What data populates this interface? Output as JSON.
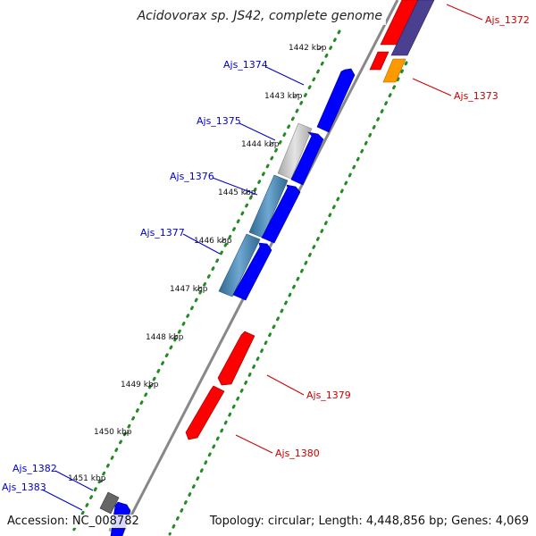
{
  "title": "Acidovorax sp. JS42, complete genome",
  "footer": {
    "accession": "Accession: NC_008782",
    "topology": "Topology: circular; Length: 4,448,856 bp; Genes: 4,069"
  },
  "colors": {
    "forward_label": "#0000cc",
    "reverse_label": "#cc0000",
    "backbone": "#888888",
    "dots": "#228b22"
  },
  "scale": {
    "unit": "kbp",
    "ticks": [
      "1442 kbp",
      "1443 kbp",
      "1444 kbp",
      "1445 kbp",
      "1446 kbp",
      "1447 kbp",
      "1448 kbp",
      "1449 kbp",
      "1450 kbp",
      "1451 kbp"
    ]
  },
  "genes": [
    {
      "name": "Ajs_1372",
      "strand": "-",
      "color": "#ff0000"
    },
    {
      "name": "Ajs_1373",
      "strand": "-",
      "color": "#ff8c00"
    },
    {
      "name": "Ajs_1374",
      "strand": "+",
      "color": "#0000ff"
    },
    {
      "name": "Ajs_1375",
      "strand": "+",
      "color": "#0000ff"
    },
    {
      "name": "Ajs_1376",
      "strand": "+",
      "color": "#0000ff"
    },
    {
      "name": "Ajs_1377",
      "strand": "+",
      "color": "#0000ff"
    },
    {
      "name": "Ajs_1379",
      "strand": "-",
      "color": "#ff0000"
    },
    {
      "name": "Ajs_1380",
      "strand": "-",
      "color": "#ff0000"
    },
    {
      "name": "Ajs_1382",
      "strand": "+",
      "color": "#666666"
    },
    {
      "name": "Ajs_1383",
      "strand": "+",
      "color": "#0000ff"
    }
  ]
}
